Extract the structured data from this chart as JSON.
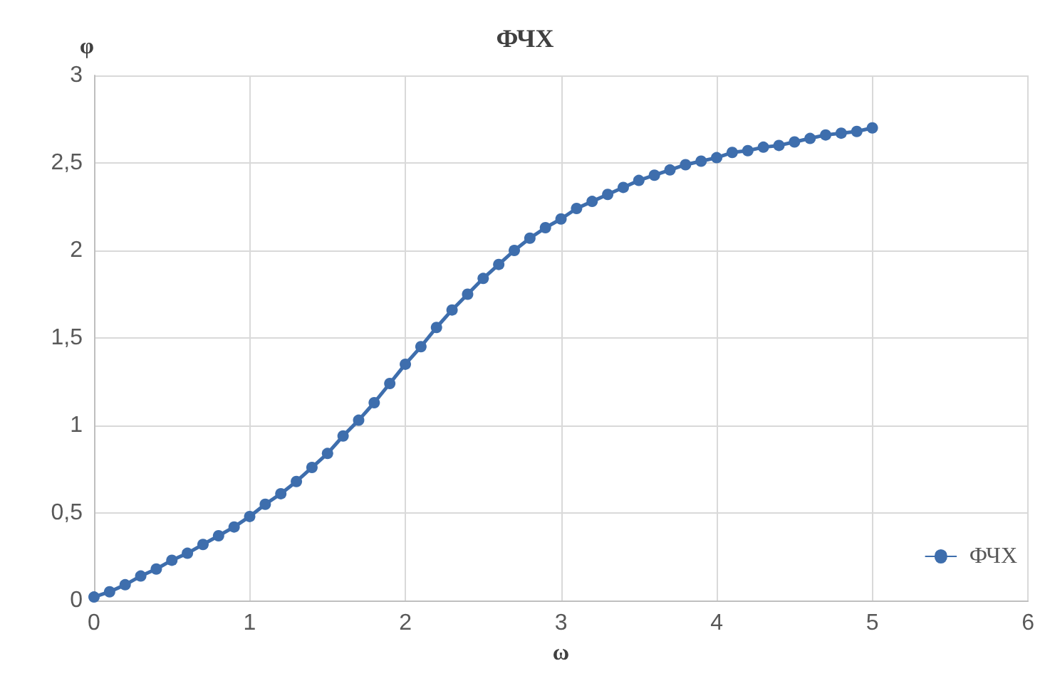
{
  "chart_data": {
    "type": "line",
    "title": "ФЧХ",
    "xlabel": "ω",
    "ylabel": "φ",
    "x": [
      0,
      0.1,
      0.2,
      0.3,
      0.4,
      0.5,
      0.6,
      0.7,
      0.8,
      0.9,
      1,
      1.1,
      1.2,
      1.3,
      1.4,
      1.5,
      1.6,
      1.7,
      1.8,
      1.9,
      2,
      2.1,
      2.2,
      2.3,
      2.4,
      2.5,
      2.6,
      2.7,
      2.8,
      2.9,
      3,
      3.1,
      3.2,
      3.3,
      3.4,
      3.5,
      3.6,
      3.7,
      3.8,
      3.9,
      4,
      4.1,
      4.2,
      4.3,
      4.4,
      4.5,
      4.6,
      4.7,
      4.8,
      4.9,
      5
    ],
    "series": [
      {
        "name": "ФЧХ",
        "color": "#3e6ead",
        "values": [
          0.02,
          0.05,
          0.09,
          0.14,
          0.18,
          0.23,
          0.27,
          0.32,
          0.37,
          0.42,
          0.48,
          0.55,
          0.61,
          0.68,
          0.76,
          0.84,
          0.94,
          1.03,
          1.13,
          1.24,
          1.35,
          1.45,
          1.56,
          1.66,
          1.75,
          1.84,
          1.92,
          2.0,
          2.07,
          2.13,
          2.18,
          2.24,
          2.28,
          2.32,
          2.36,
          2.4,
          2.43,
          2.46,
          2.49,
          2.51,
          2.53,
          2.56,
          2.57,
          2.59,
          2.6,
          2.62,
          2.64,
          2.66,
          2.67,
          2.68,
          2.7
        ]
      }
    ],
    "xlim": [
      0,
      6
    ],
    "xticks": [
      0,
      1,
      2,
      3,
      4,
      5,
      6
    ],
    "ylim": [
      0,
      3
    ],
    "yticks": [
      0,
      {
        "value": 0.5,
        "label": "0,5"
      },
      1,
      {
        "value": 1.5,
        "label": "1,5"
      },
      2,
      {
        "value": 2.5,
        "label": "2,5"
      },
      3
    ],
    "grid": true,
    "legend": "bottom right",
    "marker": "circle",
    "line_style": "solid"
  }
}
